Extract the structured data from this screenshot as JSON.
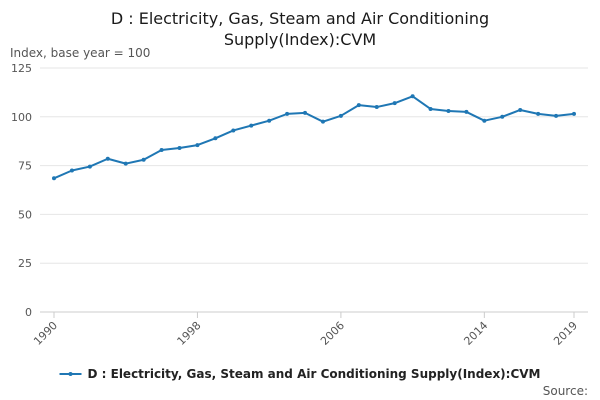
{
  "chart_data": {
    "type": "line",
    "title_lines": [
      "D : Electricity, Gas, Steam and Air Conditioning",
      "Supply(Index):CVM"
    ],
    "ylabel": "Index, base year = 100",
    "xlabel": "",
    "ylim": [
      0,
      125
    ],
    "yticks": [
      0,
      25,
      50,
      75,
      100,
      125
    ],
    "xlim": [
      1990,
      2019
    ],
    "xticks": [
      1990,
      1998,
      2006,
      2014,
      2019
    ],
    "grid": true,
    "legend_position": "bottom",
    "series": [
      {
        "name": "D : Electricity, Gas, Steam and Air Conditioning Supply(Index):CVM",
        "color": "#1f77b4",
        "x": [
          1990,
          1991,
          1992,
          1993,
          1994,
          1995,
          1996,
          1997,
          1998,
          1999,
          2000,
          2001,
          2002,
          2003,
          2004,
          2005,
          2006,
          2007,
          2008,
          2009,
          2010,
          2011,
          2012,
          2013,
          2014,
          2015,
          2016,
          2017,
          2018,
          2019
        ],
        "values": [
          68.5,
          72.5,
          74.5,
          78.5,
          76,
          78,
          83,
          84,
          85.5,
          89,
          93,
          95.5,
          98,
          101.5,
          102,
          97.5,
          100.5,
          106,
          105,
          107,
          110.5,
          104,
          103,
          102.5,
          98,
          100,
          103.5,
          101.5,
          100.5,
          101.5
        ]
      }
    ]
  },
  "source_label": "Source:"
}
